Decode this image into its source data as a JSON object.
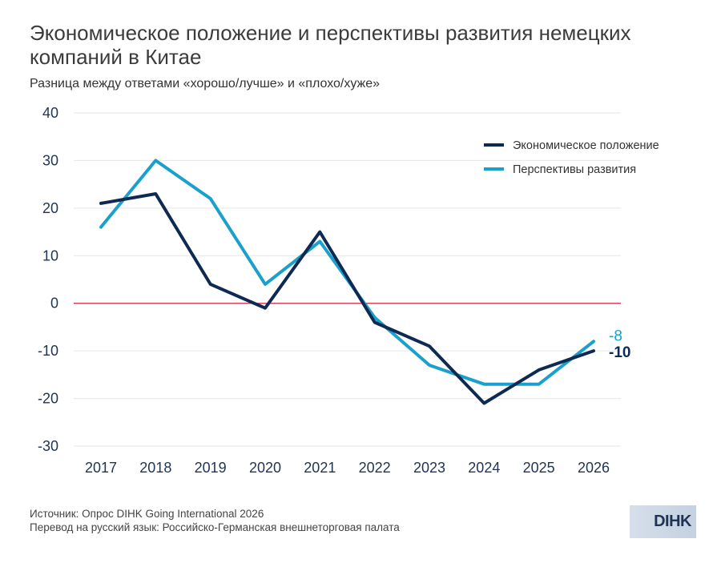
{
  "header": {
    "title": "Экономическое положение и перспективы развития немецких компаний в Китае",
    "subtitle": "Разница между ответами «хорошо/лучше» и «плохо/хуже»"
  },
  "footer": {
    "source_line1": "Источник: Опрос DIHK Going International 2026",
    "source_line2": "Перевод на русский язык: Российско-Германская внешнеторговая палата",
    "logo_text": "DIHK"
  },
  "colors": {
    "economic": "#0f2a52",
    "outlook": "#1aa0cc",
    "zero_line": "#d9415e",
    "grid": "#e6e6e6"
  },
  "chart_data": {
    "type": "line",
    "title": "Экономическое положение и перспективы развития немецких компаний в Китае",
    "subtitle": "Разница между ответами «хорошо/лучше» и «плохо/хуже»",
    "x": [
      "2017",
      "2018",
      "2019",
      "2020",
      "2021",
      "2022",
      "2023",
      "2024",
      "2025",
      "2026"
    ],
    "series": [
      {
        "name": "Экономическое положение",
        "color": "#0f2a52",
        "values": [
          21,
          23,
          4,
          -1,
          15,
          -4,
          -9,
          -21,
          -14,
          -10
        ],
        "end_label": "-10"
      },
      {
        "name": "Перспективы развития",
        "color": "#1aa0cc",
        "values": [
          16,
          30,
          22,
          4,
          13,
          -3,
          -13,
          -17,
          -17,
          -8
        ],
        "end_label": "-8"
      }
    ],
    "ylim": [
      -30,
      40
    ],
    "yticks": [
      40,
      30,
      20,
      10,
      0,
      -10,
      -20,
      -30
    ],
    "grid": true,
    "reference_line": 0,
    "legend": "top-right"
  }
}
